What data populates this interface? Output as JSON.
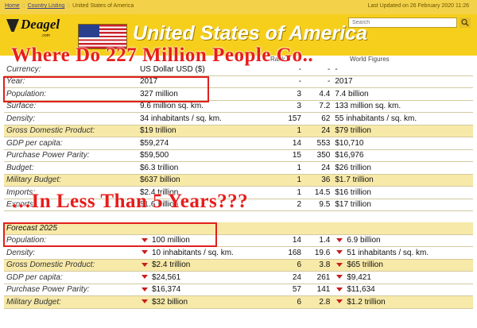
{
  "breadcrumb": {
    "home": "Home",
    "listing": "Country Listing",
    "current": "United States of America"
  },
  "updated": "Last Updated on 26 February 2020 11:26",
  "search": {
    "placeholder": "Search"
  },
  "logo": {
    "name": "Deagel",
    "tld": ".com"
  },
  "country_title": "United States of America",
  "headline_top": "Where Do 227 Million People Go..",
  "headline_mid": "…In Less Than 5 Years???",
  "columns": {
    "rank": "Rank",
    "world": "World Figures"
  },
  "rows": [
    {
      "label": "Currency:",
      "value": "US Dollar USD ($)",
      "rank": "-",
      "ratio": "-",
      "world": "-"
    },
    {
      "label": "Year:",
      "value": "2017",
      "rank": "-",
      "ratio": "-",
      "world": "2017"
    },
    {
      "label": "Population:",
      "value": "327 million",
      "rank": "3",
      "ratio": "4.4",
      "world": "7.4 billion"
    },
    {
      "label": "Surface:",
      "value": "9.6 million sq. km.",
      "rank": "3",
      "ratio": "7.2",
      "world": "133 million sq. km."
    },
    {
      "label": "Density:",
      "value": "34 inhabitants / sq. km.",
      "rank": "157",
      "ratio": "62",
      "world": "55 inhabitants / sq. km."
    },
    {
      "label": "Gross Domestic Product:",
      "value": "$19 trillion",
      "rank": "1",
      "ratio": "24",
      "world": "$79 trillion"
    },
    {
      "label": "GDP per capita:",
      "value": "$59,274",
      "rank": "14",
      "ratio": "553",
      "world": "$10,710"
    },
    {
      "label": "Purchase Power Parity:",
      "value": "$59,500",
      "rank": "15",
      "ratio": "350",
      "world": "$16,976"
    },
    {
      "label": "Budget:",
      "value": "$6.3 trillion",
      "rank": "1",
      "ratio": "24",
      "world": "$26 trillion"
    },
    {
      "label": "Military Budget:",
      "value": "$637 billion",
      "rank": "1",
      "ratio": "36",
      "world": "$1.7 trillion"
    },
    {
      "label": "Imports:",
      "value": "$2.4 trillion",
      "rank": "1",
      "ratio": "14.5",
      "world": "$16 trillion"
    },
    {
      "label": "Exports:",
      "value": "$1.6 trillion",
      "rank": "2",
      "ratio": "9.5",
      "world": "$17 trillion"
    }
  ],
  "forecast_title": "Forecast 2025",
  "forecast_rows": [
    {
      "label": "Population:",
      "value": "100 million",
      "rank": "14",
      "ratio": "1.4",
      "world": "6.9 billion"
    },
    {
      "label": "Density:",
      "value": "10 inhabitants / sq. km.",
      "rank": "168",
      "ratio": "19.6",
      "world": "51 inhabitants / sq. km."
    },
    {
      "label": "Gross Domestic Product:",
      "value": "$2.4 trillion",
      "rank": "6",
      "ratio": "3.8",
      "world": "$65 trillion"
    },
    {
      "label": "GDP per capita:",
      "value": "$24,561",
      "rank": "24",
      "ratio": "261",
      "world": "$9,421"
    },
    {
      "label": "Purchase Power Parity:",
      "value": "$16,374",
      "rank": "57",
      "ratio": "141",
      "world": "$11,634"
    },
    {
      "label": "Military Budget:",
      "value": "$32 billion",
      "rank": "6",
      "ratio": "2.8",
      "world": "$1.2 trillion"
    }
  ],
  "colors": {
    "banner": "#f6cf1d",
    "highlight": "#f7e9a8",
    "alert_red": "#e81c1c"
  }
}
